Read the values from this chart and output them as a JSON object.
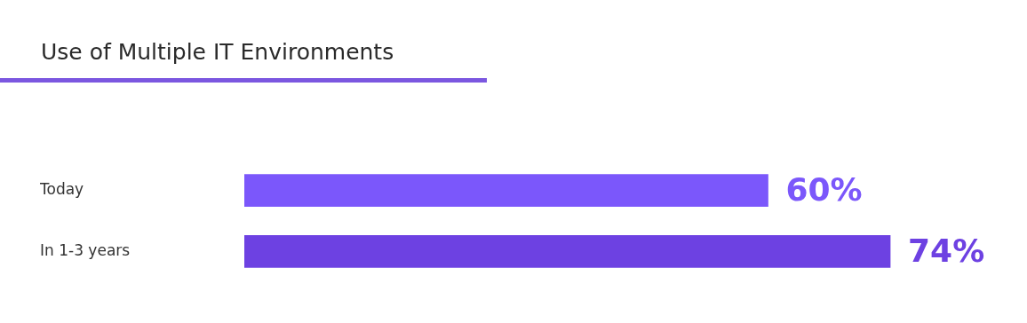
{
  "chart_data": {
    "type": "bar",
    "orientation": "horizontal",
    "title": "Use of Multiple IT Environments",
    "categories": [
      "Today",
      "In 1-3 years"
    ],
    "values": [
      60,
      74
    ],
    "colors": [
      "#7b57fb",
      "#6d41e2"
    ],
    "value_labels": [
      "60%",
      "74%"
    ],
    "tick_labels": "y",
    "legend": false
  }
}
